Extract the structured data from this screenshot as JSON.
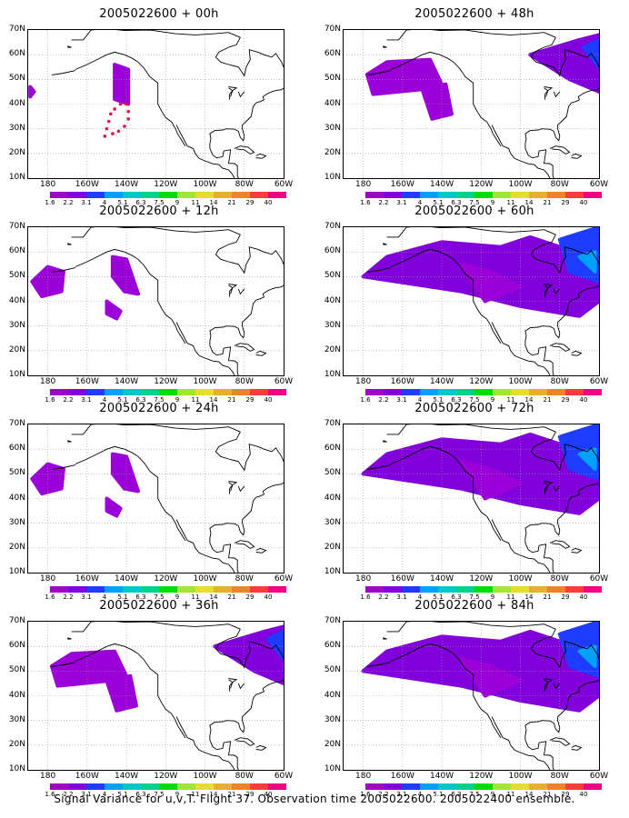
{
  "panels": [
    {
      "title": "2005022600 + 00h",
      "signal_level": "track"
    },
    {
      "title": "2005022600 + 12h",
      "signal_level": "low"
    },
    {
      "title": "2005022600 + 24h",
      "signal_level": "low"
    },
    {
      "title": "2005022600 + 36h",
      "signal_level": "medium"
    },
    {
      "title": "2005022600 + 48h",
      "signal_level": "medium"
    },
    {
      "title": "2005022600 + 60h",
      "signal_level": "high"
    },
    {
      "title": "2005022600 + 72h",
      "signal_level": "high"
    },
    {
      "title": "2005022600 + 84h",
      "signal_level": "high"
    }
  ],
  "lat_labels": [
    "70N",
    "60N",
    "50N",
    "40N",
    "30N",
    "20N",
    "10N"
  ],
  "lon_labels": [
    "180",
    "160W",
    "140W",
    "120W",
    "100W",
    "80W",
    "60W"
  ],
  "colorbar_labels": [
    "1.6",
    "2.2",
    "3.1",
    "4",
    "5.1",
    "6.3",
    "7.5",
    "9",
    "11",
    "14",
    "21",
    "29",
    "40"
  ],
  "colorbar_colors": [
    "#a000c8",
    "#8200dc",
    "#1e3cff",
    "#00a0ff",
    "#00c8c8",
    "#00d28c",
    "#00dc00",
    "#a0e632",
    "#e6dc32",
    "#e6af2d",
    "#f08228",
    "#fa3c3c",
    "#f00082"
  ],
  "caption": "Signal Variance for u,v,T. Flight 37. Observation time 2005022600. 2005022400 ensemble."
}
